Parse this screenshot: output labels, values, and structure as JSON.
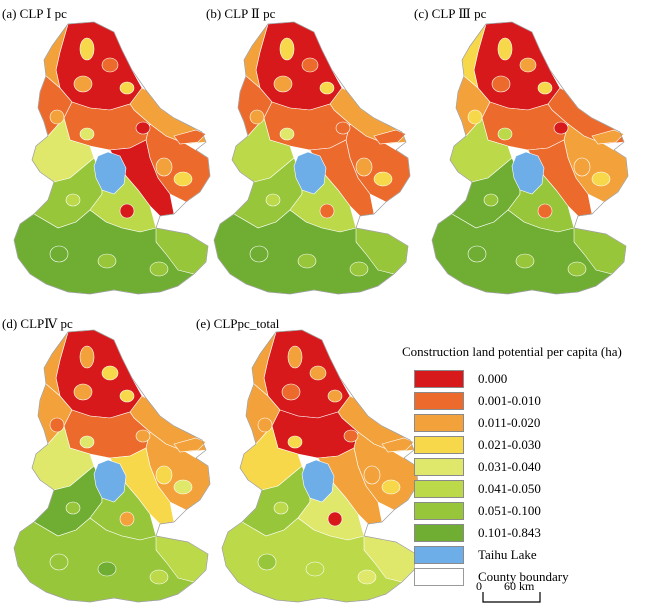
{
  "panels": [
    {
      "label": "(a) CLP Ⅰ pc"
    },
    {
      "label": "(b) CLP Ⅱ pc"
    },
    {
      "label": "(c) CLP Ⅲ pc"
    },
    {
      "label": "(d) CLPⅣ pc"
    },
    {
      "label": "(e) CLPpc_total"
    }
  ],
  "legend": {
    "title": "Construction land potential per capita (ha)",
    "items": [
      {
        "label": "0.000",
        "color": "#d7191c"
      },
      {
        "label": "0.001-0.010",
        "color": "#ec6a2c"
      },
      {
        "label": "0.011-0.020",
        "color": "#f3a23b"
      },
      {
        "label": "0.021-0.030",
        "color": "#f7d84a"
      },
      {
        "label": "0.031-0.040",
        "color": "#dfe86a"
      },
      {
        "label": "0.041-0.050",
        "color": "#bcd94a"
      },
      {
        "label": "0.051-0.100",
        "color": "#98c63a"
      },
      {
        "label": "0.101-0.843",
        "color": "#6fae33"
      },
      {
        "label": "Taihu Lake",
        "color": "#6eaee8"
      },
      {
        "label": "County boundary",
        "color": "#ffffff"
      }
    ]
  },
  "scale": {
    "zero": "0",
    "value": "60 km"
  }
}
